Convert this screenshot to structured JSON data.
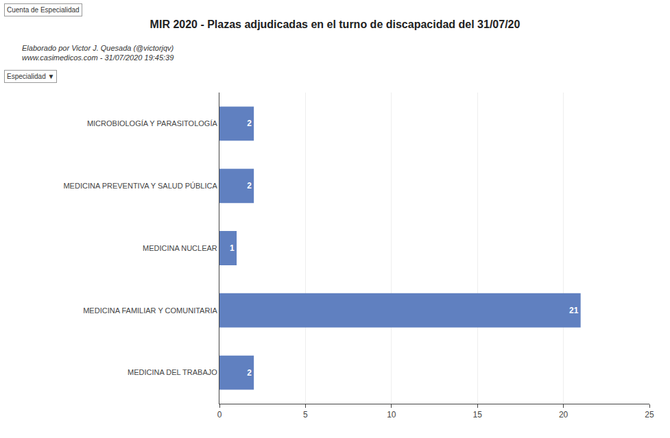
{
  "chart_data": {
    "type": "bar",
    "orientation": "horizontal",
    "title": "MIR 2020 - Plazas adjudicadas en el turno de discapacidad del 31/07/20",
    "subtitle": "Elaborado por Victor J. Quesada (@victorjqv)\nwww.casimedicos.com - 31/07/2020 19:45:39",
    "annotations": [
      "Cuenta de Especialidad",
      "Especialidad ▼"
    ],
    "categories": [
      "MEDICINA DEL TRABAJO",
      "MEDICINA FAMILIAR Y COMUNITARIA",
      "MEDICINA NUCLEAR",
      "MEDICINA PREVENTIVA Y SALUD PÚBLICA",
      "MICROBIOLOGÍA Y PARASITOLOGÍA"
    ],
    "values": [
      2,
      21,
      1,
      2,
      2
    ],
    "color": "#6080C0",
    "xlim": [
      0,
      25
    ],
    "xticks": [
      0,
      5,
      10,
      15,
      20,
      25
    ],
    "grid": true,
    "data_labels": true
  }
}
